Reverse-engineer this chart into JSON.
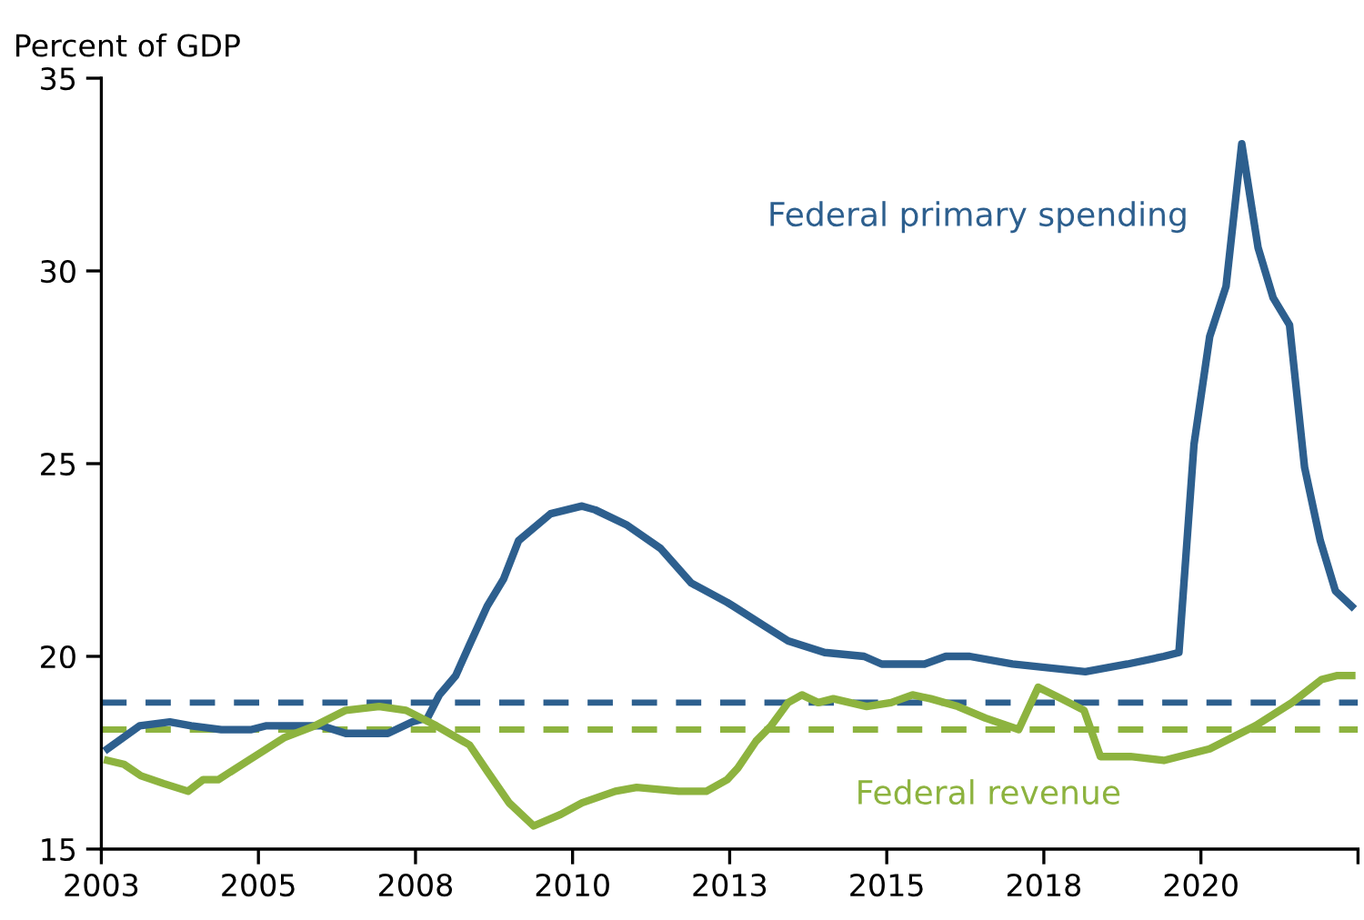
{
  "chart_data": {
    "type": "line",
    "ylabel": "Percent of GDP",
    "xlim": [
      2003,
      2023
    ],
    "xticks": [
      {
        "value": 2003,
        "label": "2003"
      },
      {
        "value": 2005.5,
        "label": "2005"
      },
      {
        "value": 2008,
        "label": "2008"
      },
      {
        "value": 2010.5,
        "label": "2010"
      },
      {
        "value": 2013,
        "label": "2013"
      },
      {
        "value": 2015.5,
        "label": "2015"
      },
      {
        "value": 2018,
        "label": "2018"
      },
      {
        "value": 2020.5,
        "label": "2020"
      },
      {
        "value": 2023,
        "label": null
      }
    ],
    "ylim": [
      15,
      35
    ],
    "yticks": [
      15,
      20,
      25,
      30,
      35
    ],
    "grid": false,
    "legend": false,
    "line_style": "solid",
    "marker": "none",
    "series": [
      {
        "name": "Federal primary spending",
        "color": "#2d5f8e",
        "x": [
          2003.1,
          2003.61,
          2004.09,
          2004.43,
          2004.91,
          2005.39,
          2005.63,
          2006.26,
          2006.5,
          2006.89,
          2007.56,
          2007.95,
          2008.19,
          2008.38,
          2008.64,
          2008.86,
          2009.14,
          2009.4,
          2009.64,
          2010.15,
          2010.65,
          2010.86,
          2011.37,
          2011.9,
          2012.39,
          2012.96,
          2013.06,
          2013.54,
          2013.93,
          2014.51,
          2015.14,
          2015.42,
          2016.1,
          2016.44,
          2016.82,
          2017.5,
          2018.08,
          2018.66,
          2019.33,
          2019.91,
          2020.15,
          2020.39,
          2020.64,
          2020.9,
          2021.15,
          2021.41,
          2021.65,
          2021.91,
          2022.15,
          2022.4,
          2022.64,
          2022.9
        ],
        "values": [
          17.6,
          18.2,
          18.3,
          18.2,
          18.1,
          18.1,
          18.2,
          18.2,
          18.2,
          18.0,
          18.0,
          18.3,
          18.4,
          19.0,
          19.5,
          20.3,
          21.3,
          22.0,
          23.0,
          23.7,
          23.9,
          23.8,
          23.4,
          22.8,
          21.9,
          21.4,
          21.3,
          20.8,
          20.4,
          20.1,
          20.0,
          19.8,
          19.8,
          20.0,
          20.0,
          19.8,
          19.7,
          19.6,
          19.8,
          20.0,
          20.1,
          25.5,
          28.3,
          29.6,
          33.3,
          30.6,
          29.3,
          28.6,
          24.9,
          23.0,
          21.7,
          21.3
        ]
      },
      {
        "name": "Federal revenue",
        "color": "#8db33f",
        "x": [
          2003.1,
          2003.36,
          2003.63,
          2003.99,
          2004.38,
          2004.62,
          2004.86,
          2005.34,
          2005.63,
          2005.92,
          2006.4,
          2006.89,
          2007.42,
          2007.85,
          2008.33,
          2008.86,
          2009.15,
          2009.49,
          2009.88,
          2010.31,
          2010.65,
          2011.18,
          2011.52,
          2012.19,
          2012.63,
          2012.96,
          2013.13,
          2013.42,
          2013.66,
          2013.93,
          2014.15,
          2014.41,
          2014.65,
          2015.18,
          2015.57,
          2015.91,
          2016.2,
          2016.63,
          2017.07,
          2017.6,
          2017.91,
          2018.28,
          2018.64,
          2018.9,
          2019.38,
          2019.91,
          2020.64,
          2021.37,
          2021.95,
          2022.42,
          2022.66,
          2022.9
        ],
        "values": [
          17.3,
          17.2,
          16.9,
          16.7,
          16.5,
          16.8,
          16.8,
          17.3,
          17.6,
          17.9,
          18.2,
          18.6,
          18.7,
          18.6,
          18.2,
          17.7,
          17.0,
          16.2,
          15.6,
          15.9,
          16.2,
          16.5,
          16.6,
          16.5,
          16.5,
          16.8,
          17.1,
          17.8,
          18.2,
          18.8,
          19.0,
          18.8,
          18.9,
          18.7,
          18.8,
          19.0,
          18.9,
          18.7,
          18.4,
          18.1,
          19.2,
          18.9,
          18.6,
          17.4,
          17.4,
          17.3,
          17.6,
          18.2,
          18.8,
          19.4,
          19.5,
          19.5
        ]
      }
    ],
    "ref_lines": [
      {
        "axis": "y",
        "value": 18.8,
        "label": null,
        "color": "#2d5f8e",
        "line_style": "dashed"
      },
      {
        "axis": "y",
        "value": 18.1,
        "label": null,
        "color": "#8db33f",
        "line_style": "dashed"
      }
    ]
  }
}
